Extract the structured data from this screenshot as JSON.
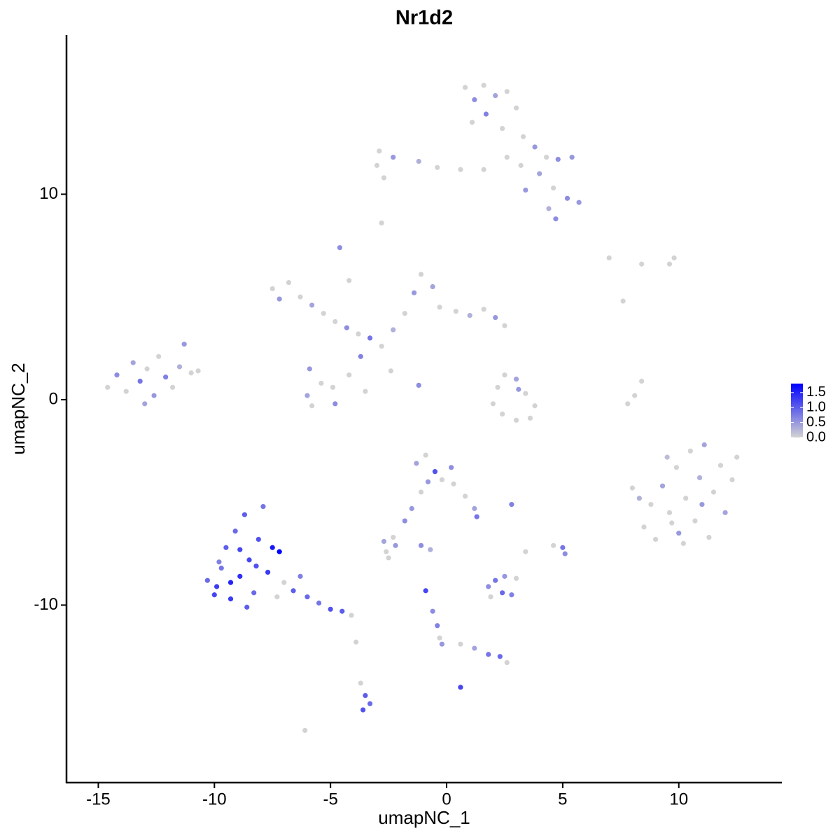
{
  "chart_data": {
    "type": "scatter",
    "title": "Nr1d2",
    "x_label": "umapNC_1",
    "y_label": "umapNC_2",
    "xlim": [
      -16.37,
      14.44
    ],
    "ylim": [
      -18.64,
      17.75
    ],
    "xticks": [
      -15,
      -10,
      -5,
      0,
      5,
      10
    ],
    "yticks": [
      -10,
      0,
      10
    ],
    "low_color": "#d3d3d3",
    "high_color": "#0000ff",
    "colorlim": [
      0,
      1.8
    ],
    "colorticks": [
      {
        "value": 0,
        "label": "0.0"
      },
      0.5,
      {
        "value": 1,
        "label": "1.0"
      },
      1.5
    ],
    "x": [
      -14.6,
      -14.2,
      -13.8,
      -13.5,
      -13.2,
      -12.9,
      -12.6,
      -12.4,
      -12.1,
      -11.8,
      -11.5,
      -11.3,
      -11,
      -10.7,
      -13,
      -7.5,
      -7.2,
      -6.8,
      -6.3,
      -5.8,
      -5.3,
      -4.8,
      -4.3,
      -3.8,
      -3.3,
      -2.8,
      -2.3,
      -1.8,
      -1.4,
      -1.1,
      -0.6,
      -0.3,
      0.4,
      1,
      1.6,
      2.1,
      2.5,
      -4.6,
      -4.2,
      -5.9,
      -5.4,
      -4.8,
      -5.8,
      -4.2,
      -3.7,
      -3.5,
      -2.4,
      -1.2,
      -6,
      -4.9,
      0.8,
      1.2,
      1.6,
      2.1,
      2.6,
      3,
      1.1,
      1.7,
      2.4,
      3.3,
      3.8,
      4.3,
      4.8,
      5.4,
      4,
      4.6,
      5.2,
      5.7,
      4.4,
      4.7,
      3.2,
      2.6,
      1.6,
      0.6,
      -0.4,
      -1.2,
      -2.3,
      -2.9,
      -3,
      -2.7,
      -2.8,
      3.4,
      2.2,
      2.5,
      3,
      3.4,
      3.8,
      3.6,
      3,
      2.4,
      2,
      3.1,
      8,
      8.3,
      8.5,
      8.8,
      9,
      9.3,
      9.6,
      9.9,
      10,
      10.3,
      10.5,
      10.7,
      10.9,
      11.1,
      11.3,
      11.5,
      11.8,
      12,
      12.3,
      12.5,
      9.5,
      10.2,
      11,
      9.7,
      8.1,
      8.4,
      7.8,
      -10.3,
      -10,
      -9.7,
      -9.5,
      -9.3,
      -9.1,
      -8.9,
      -8.7,
      -8.5,
      -8.3,
      -8.1,
      -7.9,
      -7.7,
      -7.5,
      -7.3,
      -7.2,
      -8.6,
      -9.8,
      -9.3,
      -8.2,
      -7,
      -6.6,
      -6,
      -5.5,
      -5,
      -4.5,
      -4.1,
      -6.3,
      -8.9,
      -9.9,
      -1.3,
      -0.9,
      -0.5,
      -0.8,
      -0.2,
      0.3,
      0.2,
      -1.1,
      0.8,
      1.2,
      1.3,
      -1.5,
      -1.8,
      -2.3,
      -2.7,
      -2.2,
      -2.6,
      2.8,
      1.8,
      2.1,
      2.5,
      2.8,
      2.4,
      3,
      1.9,
      5,
      5.1,
      3.4,
      4.6,
      -0.9,
      -0.6,
      -0.4,
      -0.3,
      -0.2,
      0.6,
      1.2,
      1.8,
      2.3,
      2.6,
      -1.1,
      -0.7,
      -3.7,
      -3.5,
      -3.3,
      -3.6,
      -3.9,
      0.6,
      -6.1,
      -2.5,
      7,
      8.4,
      9.8,
      9.6,
      7.6
    ],
    "y": [
      0.6,
      1.2,
      0.4,
      1.8,
      0.9,
      1.5,
      0.2,
      2.1,
      1.1,
      0.6,
      1.6,
      2.7,
      1.3,
      1.4,
      -0.2,
      5.4,
      4.9,
      5.7,
      5,
      4.6,
      4.2,
      3.8,
      3.5,
      3.2,
      3,
      2.6,
      3.4,
      4.2,
      5.2,
      6.1,
      5.5,
      4.5,
      4.3,
      4.1,
      4.4,
      4,
      3.6,
      7.4,
      5.8,
      1.5,
      0.8,
      -0.2,
      -0.3,
      1.2,
      2.1,
      0.4,
      1.4,
      0.7,
      0.2,
      0.6,
      15.2,
      14.6,
      15.3,
      14.8,
      15,
      14.2,
      13.5,
      13.9,
      13.2,
      12.8,
      12.3,
      11.8,
      11.7,
      11.8,
      11,
      10.3,
      9.8,
      9.6,
      9.3,
      8.8,
      11.4,
      11.8,
      11.2,
      11.2,
      11.3,
      11.6,
      11.8,
      12.1,
      11.4,
      10.8,
      8.6,
      10.2,
      0.6,
      1.2,
      1,
      0.3,
      -0.3,
      -0.9,
      -1,
      -0.7,
      -0.2,
      0.5,
      -4.3,
      -4.8,
      -6.2,
      -5.1,
      -6.8,
      -4.2,
      -5.5,
      -3.3,
      -6.5,
      -4.8,
      -2.5,
      -5.9,
      -3.8,
      -2.2,
      -6.7,
      -4.5,
      -3.2,
      -5.5,
      -3.9,
      -2.8,
      -2.8,
      -7,
      -5.1,
      -6,
      0.2,
      0.9,
      -0.2,
      -8.8,
      -9.5,
      -8.2,
      -7.2,
      -9.7,
      -6.4,
      -8.6,
      -5.6,
      -7.8,
      -9.4,
      -6.8,
      -5.2,
      -8.4,
      -7.2,
      -9.6,
      -7.4,
      -10.1,
      -7.9,
      -8.9,
      -8.1,
      -8.9,
      -9.3,
      -9.6,
      -9.9,
      -10.2,
      -10.3,
      -10.5,
      -8.6,
      -7.3,
      -9.1,
      -3.1,
      -2.7,
      -3.5,
      -4,
      -3.9,
      -4.1,
      -3.3,
      -4.5,
      -4.7,
      -5.3,
      -5.7,
      -5.3,
      -5.9,
      -6.7,
      -6.9,
      -7.1,
      -7.4,
      -5.1,
      -9.1,
      -8.8,
      -8.6,
      -9.5,
      -9.4,
      -8.7,
      -9.6,
      -7.2,
      -7.5,
      -7.4,
      -7.1,
      -9.3,
      -10.3,
      -11,
      -11.6,
      -11.9,
      -11.9,
      -12.1,
      -12.4,
      -12.5,
      -12.8,
      -7.1,
      -7.3,
      -13.8,
      -14.4,
      -14.8,
      -15.1,
      -11.8,
      -14,
      -16.1,
      -7.7,
      6.9,
      6.6,
      6.9,
      6.6,
      4.8
    ],
    "expression": [
      0,
      0.6,
      0,
      0.4,
      0.8,
      0,
      0.5,
      0,
      0.7,
      0,
      0.3,
      0.5,
      0,
      0,
      0.4,
      0,
      0.5,
      0,
      0,
      0.4,
      0,
      0,
      0.6,
      0,
      0.8,
      0,
      0.3,
      0,
      0.5,
      0,
      0.4,
      0,
      0,
      0.3,
      0,
      0.5,
      0,
      0.6,
      0,
      0.5,
      0,
      0.6,
      0,
      0,
      0.7,
      0,
      0,
      0.6,
      0.4,
      0,
      0,
      0.6,
      0,
      0.4,
      0,
      0,
      0,
      0.7,
      0,
      0,
      0.5,
      0,
      0.6,
      0.5,
      0.4,
      0,
      0.6,
      0.5,
      0.3,
      0.6,
      0,
      0,
      0,
      0,
      0,
      0.3,
      0.5,
      0,
      0,
      0,
      0,
      0.5,
      0,
      0,
      0.4,
      0,
      0,
      0,
      0,
      0,
      0,
      0.5,
      0,
      0.3,
      0,
      0,
      0,
      0.4,
      0,
      0,
      0.5,
      0,
      0,
      0,
      0.3,
      0.4,
      0,
      0,
      0,
      0.4,
      0,
      0,
      0.2,
      0,
      0.5,
      0,
      0,
      0,
      0,
      0.9,
      1.2,
      0.8,
      1,
      1.3,
      0.9,
      1.4,
      1,
      1.2,
      0.9,
      1.1,
      0.8,
      1.3,
      1.6,
      0,
      1.8,
      1,
      0.7,
      1.5,
      1.1,
      0,
      1,
      0.9,
      0.8,
      1.1,
      1,
      0,
      0.7,
      1.2,
      1.3,
      0.4,
      0,
      1.1,
      0.5,
      0,
      0,
      0.6,
      0,
      0,
      0.4,
      0.8,
      0.5,
      0.6,
      0,
      0.4,
      0.5,
      0,
      0.7,
      0.6,
      0.8,
      0.5,
      0.7,
      0.9,
      0,
      0,
      0.8,
      0.6,
      0,
      0,
      1.2,
      0.6,
      0.7,
      0,
      0.5,
      0,
      0.4,
      0.8,
      0.9,
      0,
      0.6,
      0.3,
      0,
      1,
      0.9,
      1.1,
      0,
      1.2,
      0,
      0,
      0,
      0,
      0,
      0,
      0
    ]
  }
}
